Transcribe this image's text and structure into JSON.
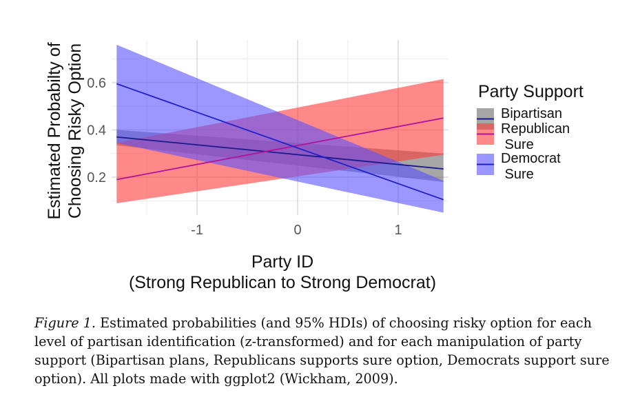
{
  "chart_data": {
    "type": "line",
    "ylabel_lines": [
      "Estimated Probabilty of",
      "Choosing Risky Option"
    ],
    "xlabel_lines": [
      "Party ID",
      "(Strong Republican to Strong Democrat)"
    ],
    "xlim": [
      -1.85,
      1.5
    ],
    "ylim": [
      0.04,
      0.78
    ],
    "x_ticks": [
      -1,
      0,
      1
    ],
    "x_tick_labels": [
      "-1",
      "0",
      "1"
    ],
    "y_ticks": [
      0.2,
      0.4,
      0.6
    ],
    "y_tick_labels": [
      "0.2",
      "0.4",
      "0.6"
    ],
    "grid": true,
    "legend_title": "Party Support",
    "legend_position": "right",
    "series": [
      {
        "key": "bipartisan",
        "name": "Bipartisan",
        "label_lines": [
          "Bipartisan"
        ],
        "line_color": "#1a1a8a",
        "fill_color": "#6b6b6b",
        "x": [
          -1.8,
          1.45
        ],
        "fit": [
          0.37,
          0.235
        ],
        "lower": [
          0.335,
          0.18
        ],
        "upper": [
          0.4,
          0.3
        ]
      },
      {
        "key": "republican",
        "name": "Republican Sure",
        "label_lines": [
          "Republican",
          " Sure"
        ],
        "line_color": "#b0129a",
        "fill_color": "#ff3b3b",
        "x": [
          -1.8,
          1.45
        ],
        "fit": [
          0.19,
          0.45
        ],
        "lower": [
          0.09,
          0.295
        ],
        "upper": [
          0.345,
          0.615
        ]
      },
      {
        "key": "democrat",
        "name": "Democrat Sure",
        "label_lines": [
          "Democrat",
          " Sure"
        ],
        "line_color": "#2020c8",
        "fill_color": "#5a52ff",
        "x": [
          -1.8,
          1.45
        ],
        "fit": [
          0.595,
          0.105
        ],
        "lower": [
          0.345,
          0.05
        ],
        "upper": [
          0.76,
          0.185
        ]
      }
    ]
  },
  "caption": {
    "figure_label": "Figure 1.",
    "text": " Estimated probabilities (and 95% HDIs) of choosing risky option for each level of partisan identification (z-transformed) and for each manipulation of party support (Bipartisan plans, Republicans supports sure option, Democrats support sure option). All plots made with ggplot2 (Wickham, 2009)."
  }
}
